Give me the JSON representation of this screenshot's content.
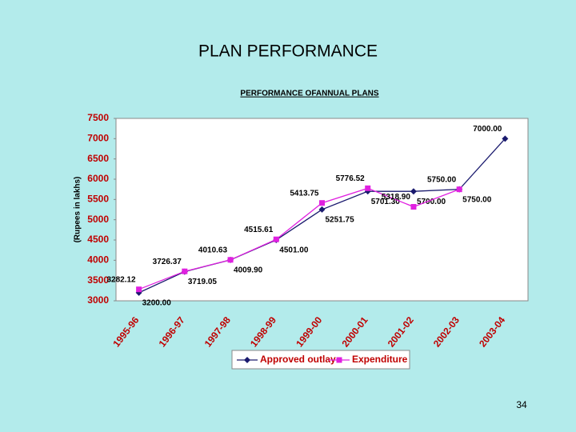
{
  "slide_title": "PLAN PERFORMANCE",
  "page_number": "34",
  "chart_data": {
    "type": "line",
    "title": "PERFORMANCE OFANNUAL PLANS",
    "y_label": "(Rupees in lakhs)",
    "categories": [
      "1995-96",
      "1996-97",
      "1997-98",
      "1998-99",
      "1999-00",
      "2000-01",
      "2001-02",
      "2002-03",
      "2003-04"
    ],
    "series": [
      {
        "name": "Approved outlay",
        "color": "#1a1a6e",
        "marker": "diamond",
        "values": [
          3200,
          3719.05,
          4009.9,
          4501,
          5251.75,
          5701.3,
          5700,
          5750,
          7000
        ],
        "value_labels": [
          "3200.00",
          "3719.05",
          "4009.90",
          "4501.00",
          "5251.75",
          "5701.30",
          "5700.00",
          "5750.00",
          "7000.00"
        ]
      },
      {
        "name": "Expenditure",
        "color": "#e020e0",
        "marker": "square",
        "values": [
          3282.12,
          3726.37,
          4010.63,
          4515.61,
          5413.75,
          5776.52,
          5318.9,
          5750,
          null
        ],
        "value_labels": [
          "3282.12",
          "3726.37",
          "4010.63",
          "4515.61",
          "5413.75",
          "5776.52",
          "5318.90",
          "5750.00",
          null
        ]
      }
    ],
    "ylim": [
      3000,
      7500
    ],
    "yticks": [
      3000,
      3500,
      4000,
      4500,
      5000,
      5500,
      6000,
      6500,
      7000,
      7500
    ],
    "legend": "bottom"
  }
}
